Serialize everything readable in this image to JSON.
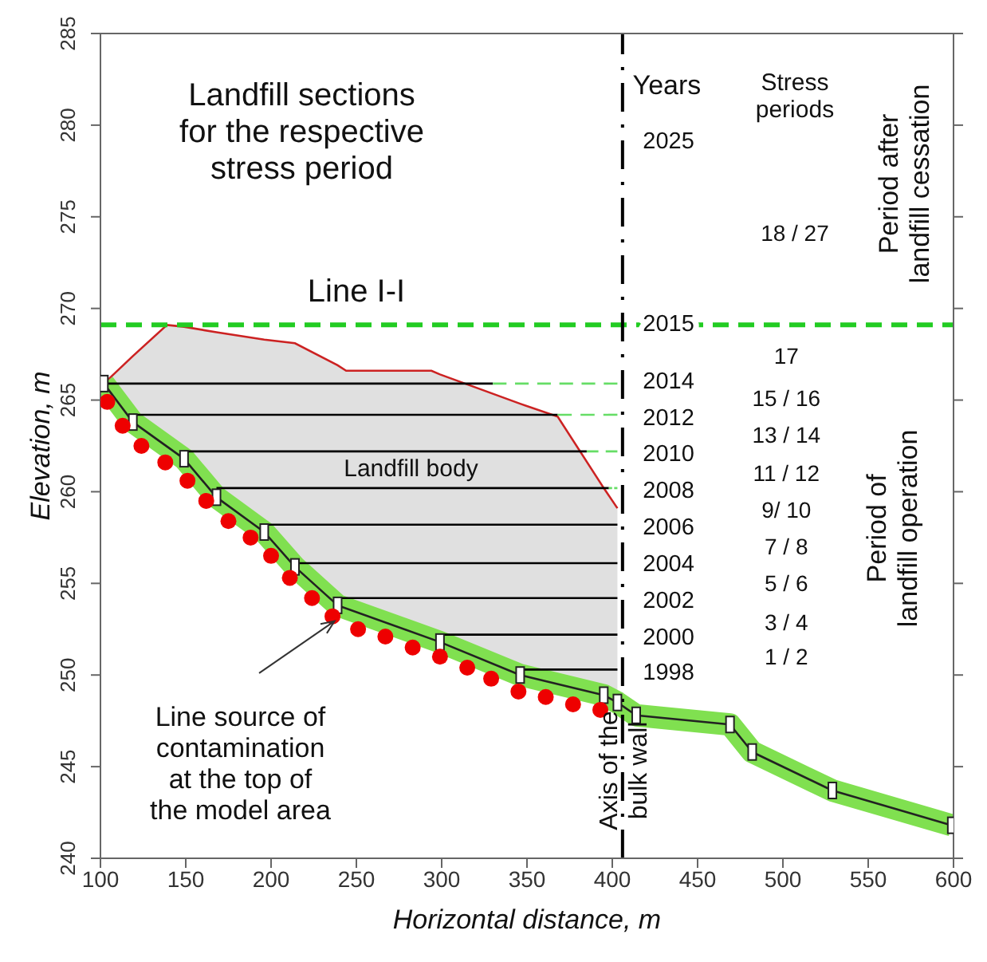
{
  "chart_data": {
    "type": "line",
    "xlabel": "Horizontal distance, m",
    "ylabel": "Elevation, m",
    "xlim": [
      100,
      600
    ],
    "ylim": [
      240,
      285
    ],
    "xticks": [
      100,
      150,
      200,
      250,
      300,
      350,
      400,
      450,
      500,
      550,
      600
    ],
    "yticks": [
      240,
      245,
      250,
      255,
      260,
      265,
      270,
      275,
      280,
      285
    ],
    "series": [
      {
        "type": "area",
        "color": "#cc2222",
        "x": [
          102,
          119,
          139,
          149,
          168,
          196,
          214,
          239,
          244,
          294,
          299,
          346,
          368,
          395,
          403
        ],
        "values": [
          265.9,
          267.4,
          269.1,
          269.0,
          268.7,
          268.3,
          268.1,
          266.9,
          266.6,
          266.6,
          266.4,
          264.8,
          264.1,
          260.2,
          259.1
        ]
      },
      {
        "color": "#80e050",
        "x": [
          102,
          119,
          149,
          168,
          196,
          214,
          239,
          299,
          346,
          395,
          403,
          414,
          469,
          482,
          529,
          599
        ],
        "values": [
          265.9,
          263.8,
          261.8,
          259.7,
          257.8,
          255.9,
          253.8,
          251.8,
          250.0,
          248.9,
          248.5,
          247.8,
          247.3,
          245.8,
          243.7,
          241.8
        ]
      },
      {
        "color": "#000000",
        "marker": "none",
        "x": [
          102,
          330
        ],
        "values": [
          265.9,
          265.9
        ]
      },
      {
        "color": "#000000",
        "marker": "none",
        "x": [
          119,
          368
        ],
        "values": [
          264.2,
          264.2
        ]
      },
      {
        "color": "#000000",
        "marker": "none",
        "x": [
          149,
          385
        ],
        "values": [
          262.2,
          262.2
        ]
      },
      {
        "color": "#000000",
        "marker": "none",
        "x": [
          168,
          398
        ],
        "values": [
          260.2,
          260.2
        ]
      },
      {
        "color": "#000000",
        "marker": "none",
        "x": [
          196,
          403
        ],
        "values": [
          258.2,
          258.2
        ]
      },
      {
        "color": "#000000",
        "marker": "none",
        "x": [
          214,
          403
        ],
        "values": [
          256.1,
          256.1
        ]
      },
      {
        "color": "#000000",
        "marker": "none",
        "x": [
          239,
          403
        ],
        "values": [
          254.2,
          254.2
        ]
      },
      {
        "color": "#000000",
        "marker": "none",
        "x": [
          299,
          403
        ],
        "values": [
          252.2,
          252.2
        ]
      },
      {
        "color": "#000000",
        "marker": "none",
        "x": [
          346,
          403
        ],
        "values": [
          250.3,
          250.3
        ]
      },
      {
        "color": "#66dd66",
        "marker": "none",
        "line_style": "dashed",
        "x": [
          330,
          403
        ],
        "values": [
          265.9,
          265.9
        ]
      },
      {
        "color": "#66dd66",
        "marker": "none",
        "line_style": "dashed",
        "x": [
          368,
          403
        ],
        "values": [
          264.2,
          264.2
        ]
      },
      {
        "color": "#66dd66",
        "marker": "none",
        "line_style": "dashed",
        "x": [
          385,
          403
        ],
        "values": [
          262.2,
          262.2
        ]
      },
      {
        "color": "#66dd66",
        "marker": "none",
        "line_style": "dashed",
        "x": [
          398,
          403
        ],
        "values": [
          260.2,
          260.2
        ]
      },
      {
        "color": "#222222",
        "marker": "square",
        "x": [
          102,
          119,
          149,
          168,
          196,
          214,
          239,
          299,
          346,
          395,
          403,
          414,
          469,
          482,
          529,
          599
        ],
        "values": [
          265.9,
          263.8,
          261.8,
          259.7,
          257.8,
          255.9,
          253.8,
          251.8,
          250.0,
          248.9,
          248.5,
          247.8,
          247.3,
          245.8,
          243.7,
          241.8
        ]
      },
      {
        "type": "scatter",
        "color": "#ee0000",
        "marker": "circle",
        "x": [
          104,
          113,
          124,
          138,
          151,
          162,
          175,
          188,
          200,
          211,
          224,
          236,
          251,
          267,
          283,
          299,
          315,
          329,
          345,
          361,
          377,
          393
        ],
        "values": [
          264.9,
          263.6,
          262.5,
          261.6,
          260.6,
          259.5,
          258.4,
          257.5,
          256.5,
          255.3,
          254.2,
          253.2,
          252.5,
          252.1,
          251.5,
          251.0,
          250.4,
          249.8,
          249.1,
          248.8,
          248.4,
          248.1
        ]
      }
    ],
    "ref_lines": [
      {
        "axis": "y",
        "value": 269.1,
        "color": "#22cc22",
        "line_style": "dashed"
      },
      {
        "axis": "x",
        "value": 406,
        "color": "#000000",
        "line_style": "dashed",
        "label": "Axis of the\nbulk wall"
      }
    ],
    "annotations": [
      "Landfill sections\nfor the respective\nstress period",
      "Line I-I",
      "Landfill body",
      {
        "text": "Line source of\ncontamination\nat the top of\nthe model area",
        "x": 240,
        "y": 253.2
      },
      "Years",
      "Stress\nperiods",
      "Period after\nlandfill cessation",
      "Period of\nlandfill operation",
      "2025",
      "2015",
      "2014",
      "2012",
      "2010",
      "2008",
      "2006",
      "2004",
      "2002",
      "2000",
      "1998",
      "18 / 27",
      "17",
      "15 / 16",
      "13 / 14",
      "11 / 12",
      "9/ 10",
      "7 / 8",
      "5 / 6",
      "3 / 4",
      "1 / 2"
    ]
  }
}
